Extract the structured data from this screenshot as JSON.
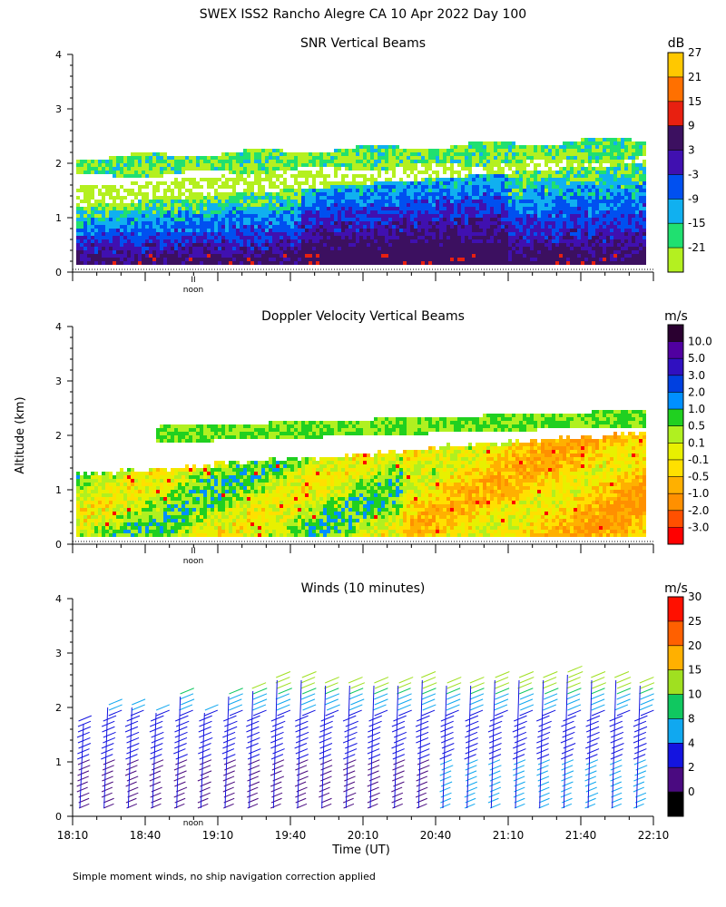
{
  "title": "SWEX ISS2 Rancho Alegre CA  10 Apr 2022 Day 100",
  "ylabel": "Altitude (km)",
  "xlabel": "Time (UT)",
  "footnote": "Simple moment winds, no ship navigation correction applied",
  "noon_label": "noon",
  "noon_mark": "II",
  "colors": {
    "snr": [
      "#b4f020",
      "#20e070",
      "#10b0f0",
      "#0050f0",
      "#4010b0",
      "#3c1060",
      "#e82010",
      "#ff7000",
      "#ffc800"
    ],
    "doppler": [
      "#ff0000",
      "#ff5000",
      "#ff9000",
      "#ffb000",
      "#ffe000",
      "#e8f000",
      "#b0f020",
      "#20d020",
      "#0090ff",
      "#0040e0",
      "#3010c0",
      "#5000a0",
      "#2a0030"
    ],
    "winds": [
      "#000000",
      "#4a0a80",
      "#1414e0",
      "#10a8f0",
      "#10c860",
      "#a0e020",
      "#ffb000",
      "#ff6000",
      "#ff1000"
    ]
  },
  "chart_data": [
    {
      "type": "heatmap",
      "title": "SNR Vertical Beams",
      "ylabel": "Altitude (km)",
      "ylim": [
        0,
        4
      ],
      "yticks": [
        "0",
        "1",
        "2",
        "3",
        "4"
      ],
      "xlim": [
        "18:10",
        "22:10"
      ],
      "colorbar_unit": "dB",
      "colorbar_labels": [
        "-21",
        "-15",
        "-9",
        "-3",
        "3",
        "9",
        "15",
        "21",
        "27"
      ]
    },
    {
      "type": "heatmap",
      "title": "Doppler Velocity Vertical Beams",
      "ylabel": "Altitude (km)",
      "ylim": [
        0,
        4
      ],
      "yticks": [
        "0",
        "1",
        "2",
        "3",
        "4"
      ],
      "xlim": [
        "18:10",
        "22:10"
      ],
      "colorbar_unit": "m/s",
      "colorbar_labels": [
        "-3.0",
        "-2.0",
        "-1.0",
        "-0.5",
        "-0.1",
        "0.1",
        "0.5",
        "1.0",
        "2.0",
        "3.0",
        "5.0",
        "10.0"
      ]
    },
    {
      "type": "scatter",
      "title": "Winds (10 minutes)",
      "xlabel": "Time (UT)",
      "ylabel": "Altitude (km)",
      "ylim": [
        0,
        4
      ],
      "yticks": [
        "0",
        "1",
        "2",
        "3",
        "4"
      ],
      "x_ticklabels": [
        "18:10",
        "18:40",
        "19:10",
        "19:40",
        "20:10",
        "20:40",
        "21:10",
        "21:40",
        "22:10"
      ],
      "colorbar_unit": "m/s",
      "colorbar_labels": [
        "0",
        "2",
        "4",
        "8",
        "10",
        "15",
        "20",
        "25",
        "30"
      ],
      "profile_times": [
        "18:10",
        "18:20",
        "18:30",
        "18:40",
        "18:50",
        "19:00",
        "19:10",
        "19:20",
        "19:30",
        "19:40",
        "19:50",
        "20:00",
        "20:10",
        "20:20",
        "20:30",
        "20:40",
        "20:50",
        "21:00",
        "21:10",
        "21:20",
        "21:30",
        "21:40",
        "21:50",
        "22:00"
      ],
      "profile_top_km": [
        1.8,
        2.1,
        2.1,
        2.0,
        2.3,
        2.0,
        2.3,
        2.4,
        2.6,
        2.6,
        2.5,
        2.5,
        2.5,
        2.5,
        2.6,
        2.5,
        2.5,
        2.6,
        2.6,
        2.6,
        2.7,
        2.6,
        2.6,
        2.5
      ]
    }
  ]
}
